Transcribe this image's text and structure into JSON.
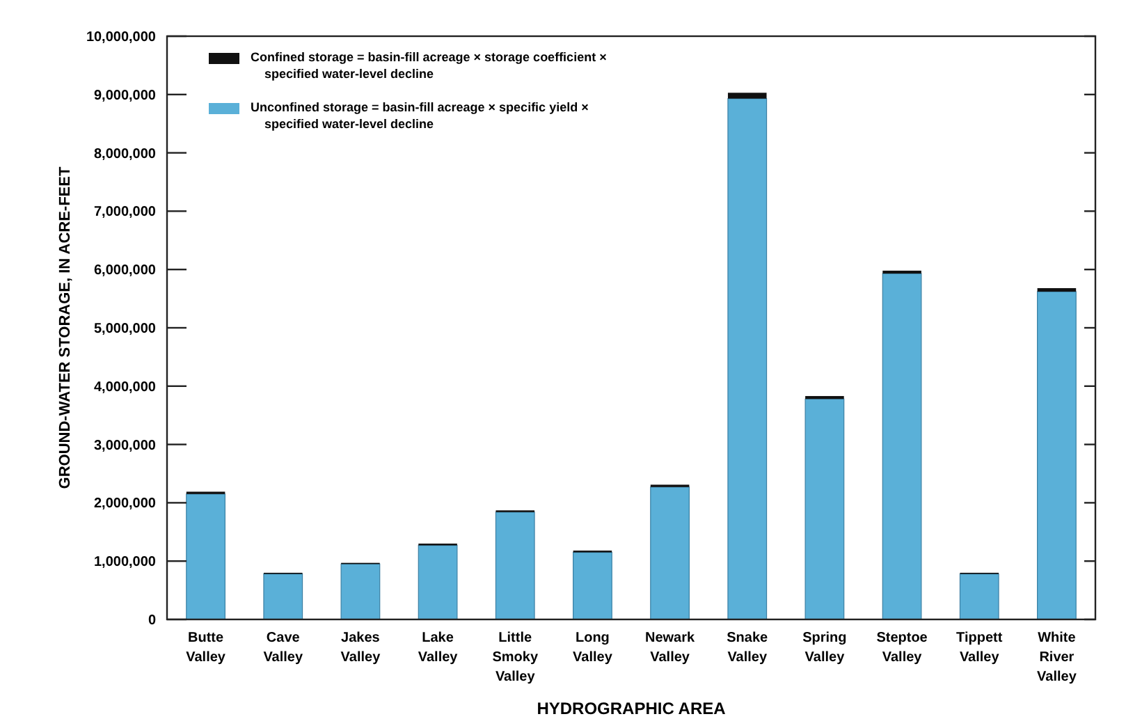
{
  "chart_data": {
    "type": "bar",
    "stacked": true,
    "xlabel": "HYDROGRAPHIC AREA",
    "ylabel": "GROUND-WATER STORAGE, IN ACRE-FEET",
    "categories": [
      "Butte Valley",
      "Cave Valley",
      "Jakes Valley",
      "Lake Valley",
      "Little Smoky Valley",
      "Long Valley",
      "Newark Valley",
      "Snake Valley",
      "Spring Valley",
      "Steptoe Valley",
      "Tippett Valley",
      "White River Valley"
    ],
    "series": [
      {
        "name": "Unconfined storage = basin-fill acreage × specific yield × specified water-level decline",
        "color": "#5ab0d8",
        "values": [
          2150000,
          780000,
          950000,
          1270000,
          1840000,
          1150000,
          2270000,
          8930000,
          3780000,
          5930000,
          780000,
          5620000
        ]
      },
      {
        "name": "Confined storage = basin-fill acreage × storage coefficient × specified water-level decline",
        "color": "#111111",
        "values": [
          40000,
          20000,
          20000,
          30000,
          30000,
          30000,
          40000,
          100000,
          50000,
          50000,
          20000,
          60000
        ]
      }
    ],
    "ylim": [
      0,
      10000000
    ],
    "yticks": [
      0,
      {
        "value": 1000000,
        "label": "1,000,000"
      },
      {
        "value": 2000000,
        "label": "2,000,000"
      },
      {
        "value": 3000000,
        "label": "3,000,000"
      },
      {
        "value": 4000000,
        "label": "4,000,000"
      },
      {
        "value": 5000000,
        "label": "5,000,000"
      },
      {
        "value": 6000000,
        "label": "6,000,000"
      },
      {
        "value": 7000000,
        "label": "7,000,000"
      },
      {
        "value": 8000000,
        "label": "8,000,000"
      },
      {
        "value": 9000000,
        "label": "9,000,000"
      },
      {
        "value": 10000000,
        "label": "10,000,000"
      }
    ],
    "grid": false,
    "legend": "top left"
  }
}
